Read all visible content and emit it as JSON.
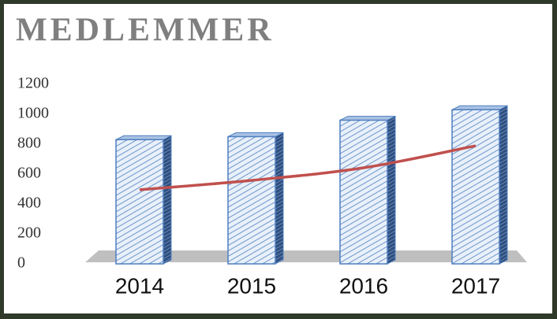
{
  "chart_data": {
    "type": "bar",
    "title": "MEDLEMMER",
    "categories": [
      "2014",
      "2015",
      "2016",
      "2017"
    ],
    "values": [
      830,
      850,
      960,
      1030
    ],
    "color": "#4f7fbf",
    "trend": {
      "color": "#c0504d",
      "values": [
        495,
        558,
        642,
        789
      ]
    },
    "ylim": [
      0,
      1200
    ],
    "yticks": [
      0,
      200,
      400,
      600,
      800,
      1000,
      1200
    ]
  }
}
